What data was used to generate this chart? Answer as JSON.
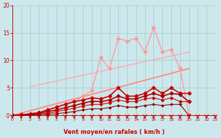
{
  "background_color": "#cce8ec",
  "grid_color": "#aacccc",
  "xlabel": "Vent moyen/en rafales ( km/h )",
  "xlabel_color": "#cc0000",
  "tick_color": "#cc0000",
  "xlim": [
    0,
    23
  ],
  "ylim": [
    0,
    20
  ],
  "yticks": [
    0,
    5,
    10,
    15,
    20
  ],
  "xticks": [
    0,
    1,
    2,
    3,
    4,
    5,
    6,
    7,
    8,
    9,
    10,
    11,
    12,
    13,
    14,
    15,
    16,
    17,
    18,
    19,
    20,
    21,
    22,
    23
  ],
  "lines": [
    {
      "x": [
        0,
        20
      ],
      "y": [
        0,
        8.5
      ],
      "color": "#ffaaaa",
      "lw": 1.0,
      "marker": null
    },
    {
      "x": [
        2,
        20
      ],
      "y": [
        5.2,
        11.5
      ],
      "color": "#ffaaaa",
      "lw": 1.0,
      "marker": null
    },
    {
      "x": [
        2,
        3,
        4,
        5,
        6,
        7,
        8,
        9,
        10,
        11,
        12,
        13,
        14,
        15,
        16,
        17,
        18,
        19,
        20
      ],
      "y": [
        0.2,
        0.5,
        1.0,
        1.5,
        2.2,
        2.5,
        3.5,
        4.5,
        10.5,
        8.5,
        14.0,
        13.5,
        14.0,
        11.5,
        16.0,
        11.5,
        12.0,
        8.5,
        0.2
      ],
      "color": "#ff9999",
      "lw": 1.0,
      "marker": "D",
      "marker_size": 2.5
    },
    {
      "x": [
        0,
        20
      ],
      "y": [
        0,
        8.5
      ],
      "color": "#ff8888",
      "lw": 1.2,
      "marker": null
    },
    {
      "x": [
        0,
        1,
        2,
        3,
        4,
        5,
        6,
        7,
        8,
        9,
        10,
        11,
        12,
        13,
        14,
        15,
        16,
        17,
        18,
        19,
        20
      ],
      "y": [
        0,
        0.1,
        0.3,
        0.5,
        1.0,
        1.5,
        2.0,
        2.5,
        2.8,
        3.2,
        3.0,
        3.5,
        5.0,
        3.5,
        3.5,
        4.0,
        5.0,
        4.0,
        5.0,
        4.0,
        4.0
      ],
      "color": "#cc0000",
      "lw": 1.2,
      "marker": "D",
      "marker_size": 2.5
    },
    {
      "x": [
        0,
        1,
        2,
        3,
        4,
        5,
        6,
        7,
        8,
        9,
        10,
        11,
        12,
        13,
        14,
        15,
        16,
        17,
        18,
        19,
        20
      ],
      "y": [
        0,
        0.1,
        0.2,
        0.4,
        0.7,
        1.0,
        1.4,
        1.8,
        2.2,
        2.6,
        2.5,
        2.8,
        3.5,
        3.0,
        3.0,
        3.5,
        4.0,
        3.5,
        4.0,
        3.8,
        2.5
      ],
      "color": "#aa0000",
      "lw": 1.2,
      "marker": "D",
      "marker_size": 2.5
    },
    {
      "x": [
        0,
        1,
        2,
        3,
        4,
        5,
        6,
        7,
        8,
        9,
        10,
        11,
        12,
        13,
        14,
        15,
        16,
        17,
        18,
        19,
        20
      ],
      "y": [
        0,
        0.05,
        0.1,
        0.2,
        0.4,
        0.7,
        1.0,
        1.3,
        1.7,
        2.0,
        2.0,
        2.3,
        2.8,
        2.5,
        2.5,
        3.0,
        3.2,
        2.8,
        3.2,
        2.5,
        2.5
      ],
      "color": "#cc0000",
      "lw": 0.8,
      "marker": "D",
      "marker_size": 2.0
    },
    {
      "x": [
        0,
        1,
        2,
        3,
        4,
        5,
        6,
        7,
        8,
        9,
        10,
        11,
        12,
        13,
        14,
        15,
        16,
        17,
        18,
        19,
        20
      ],
      "y": [
        0,
        0.05,
        0.1,
        0.15,
        0.2,
        0.3,
        0.5,
        0.7,
        1.0,
        1.2,
        1.2,
        1.4,
        1.8,
        1.5,
        1.5,
        1.8,
        2.0,
        1.8,
        2.0,
        2.0,
        0.0
      ],
      "color": "#880000",
      "lw": 0.8,
      "marker": "D",
      "marker_size": 1.5
    }
  ],
  "arrow_color": "#cc0000"
}
